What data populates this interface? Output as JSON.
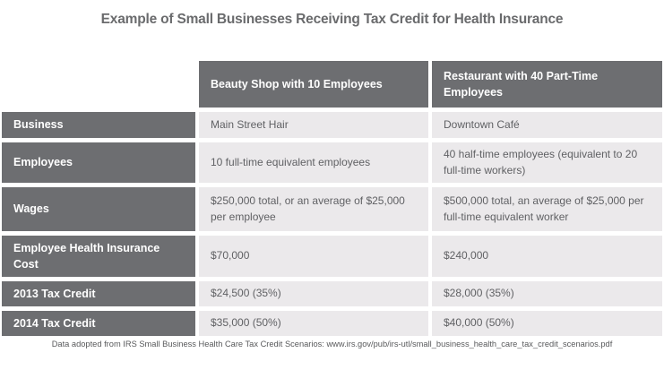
{
  "chart_data": {
    "type": "table",
    "title": "Example of Small Businesses Receiving Tax Credit for Health Insurance",
    "columns": [
      "",
      "Beauty Shop with 10 Employees",
      "Restaurant with 40 Part-Time Employees"
    ],
    "rows": [
      [
        "Business",
        "Main Street Hair",
        "Downtown Café"
      ],
      [
        "Employees",
        "10 full-time equivalent employees",
        "40 half-time employees (equivalent to 20 full-time workers)"
      ],
      [
        "Wages",
        "$250,000 total, or an average of $25,000 per employee",
        "$500,000 total, an average of $25,000 per full-time equivalent worker"
      ],
      [
        "Employee Health Insurance Cost",
        "$70,000",
        "$240,000"
      ],
      [
        "2013 Tax Credit",
        "$24,500 (35%)",
        "$28,000 (35%)"
      ],
      [
        "2014 Tax Credit",
        "$35,000 (50%)",
        "$40,000 (50%)"
      ]
    ],
    "footnote": "Data adopted from IRS Small Business Health Care Tax Credit Scenarios: www.irs.gov/pub/irs-utl/small_business_health_care_tax_credit_scenarios.pdf",
    "layout": {
      "legend": "none",
      "grid": "off"
    },
    "colors": {
      "header_bg": "#6d6e71",
      "row_label_bg": "#6d6e71",
      "data_cell_bg": "#ebe9eb",
      "header_text": "#ffffff",
      "data_text": "#606164",
      "title_text": "#6a6b6d",
      "page_bg": "#ffffff"
    }
  }
}
